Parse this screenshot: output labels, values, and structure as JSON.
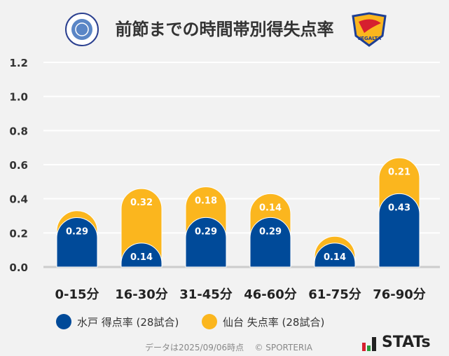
{
  "title": "前節までの時間帯別得失点率",
  "logos": {
    "home": "FC MITO HOLLYHOCK",
    "away": "VEGALTA"
  },
  "brand": "STATs",
  "footer": {
    "date_note": "データは2025/09/06時点",
    "copyright": "© SPORTERIA"
  },
  "chart_data": {
    "type": "bar",
    "stacked": true,
    "title": "前節までの時間帯別得失点率",
    "categories": [
      "0-15分",
      "16-30分",
      "31-45分",
      "46-60分",
      "61-75分",
      "76-90分"
    ],
    "series": [
      {
        "name": "水戸 得点率 (28試合)",
        "color": "#004a99",
        "values": [
          0.29,
          0.14,
          0.29,
          0.29,
          0.14,
          0.43
        ]
      },
      {
        "name": "仙台 失点率 (28試合)",
        "color": "#fbb61e",
        "values": [
          0.04,
          0.32,
          0.18,
          0.14,
          0.04,
          0.21
        ]
      }
    ],
    "ylim": [
      0,
      1.2
    ],
    "yticks": [
      "0.0",
      "0.2",
      "0.4",
      "0.6",
      "0.8",
      "1.0",
      "1.2"
    ],
    "grid": true,
    "legend": "bottom"
  }
}
